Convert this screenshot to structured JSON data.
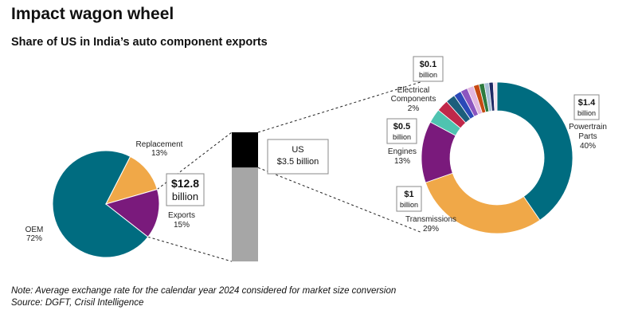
{
  "header": {
    "title": "Impact wagon wheel",
    "subtitle": "Share of US in India’s auto component exports"
  },
  "footer": {
    "note": "Note: Average exchange rate for the calendar year 2024 considered for market size conversion",
    "source": "Source: DGFT, Crisil Intelligence"
  },
  "chart_data": [
    {
      "type": "pie",
      "slices": [
        {
          "label": "OEM",
          "value": 72,
          "display": "72%",
          "color": "#006c80"
        },
        {
          "label": "Replacement",
          "value": 13,
          "display": "13%",
          "color": "#f0a848"
        },
        {
          "label": "Exports",
          "value": 15,
          "display": "15%",
          "color": "#7a1a7c"
        }
      ],
      "callout": {
        "value": "$12.8",
        "unit": "billion"
      }
    },
    {
      "type": "bar",
      "stacked": true,
      "segments": [
        {
          "label": "US",
          "value": 3.5,
          "color": "#000000"
        },
        {
          "label": "",
          "value": 9.3,
          "color": "#a6a6a6"
        }
      ],
      "total": 12.8,
      "callout": {
        "line1": "US",
        "line2": "$3.5 billion"
      }
    },
    {
      "type": "pie",
      "donut": true,
      "slices": [
        {
          "label": "Powertrain Parts",
          "lines": [
            "Powertrain",
            "Parts"
          ],
          "value": 40,
          "display": "40%",
          "color": "#006c80",
          "callout": "$1.4"
        },
        {
          "label": "Transmissions",
          "lines": [
            "Transmissions"
          ],
          "value": 29,
          "display": "29%",
          "color": "#f0a848",
          "callout": "$1"
        },
        {
          "label": "Engines",
          "lines": [
            "Engines"
          ],
          "value": 13,
          "display": "13%",
          "color": "#7a1a7c",
          "callout": "$0.5"
        },
        {
          "label": "",
          "value": 3,
          "color": "#4fc3b0"
        },
        {
          "label": "",
          "value": 2.5,
          "color": "#c0284a"
        },
        {
          "label": "Electrical Components",
          "lines": [
            "Electrical",
            "Components"
          ],
          "value": 2,
          "display": "2%",
          "color": "#1c5e7c",
          "callout": "$0.1"
        },
        {
          "label": "",
          "value": 1.6,
          "color": "#2b49b8"
        },
        {
          "label": "",
          "value": 1.5,
          "color": "#8c55c0"
        },
        {
          "label": "",
          "value": 1.4,
          "color": "#e3b8e0"
        },
        {
          "label": "",
          "value": 1.2,
          "color": "#c74a12"
        },
        {
          "label": "",
          "value": 1.1,
          "color": "#2d7a3d"
        },
        {
          "label": "",
          "value": 1.0,
          "color": "#a7bfd6"
        },
        {
          "label": "",
          "value": 0.9,
          "color": "#1f2a66"
        },
        {
          "label": "",
          "value": 0.8,
          "color": "#f6e2f0"
        }
      ],
      "callout_unit": "billion"
    }
  ]
}
